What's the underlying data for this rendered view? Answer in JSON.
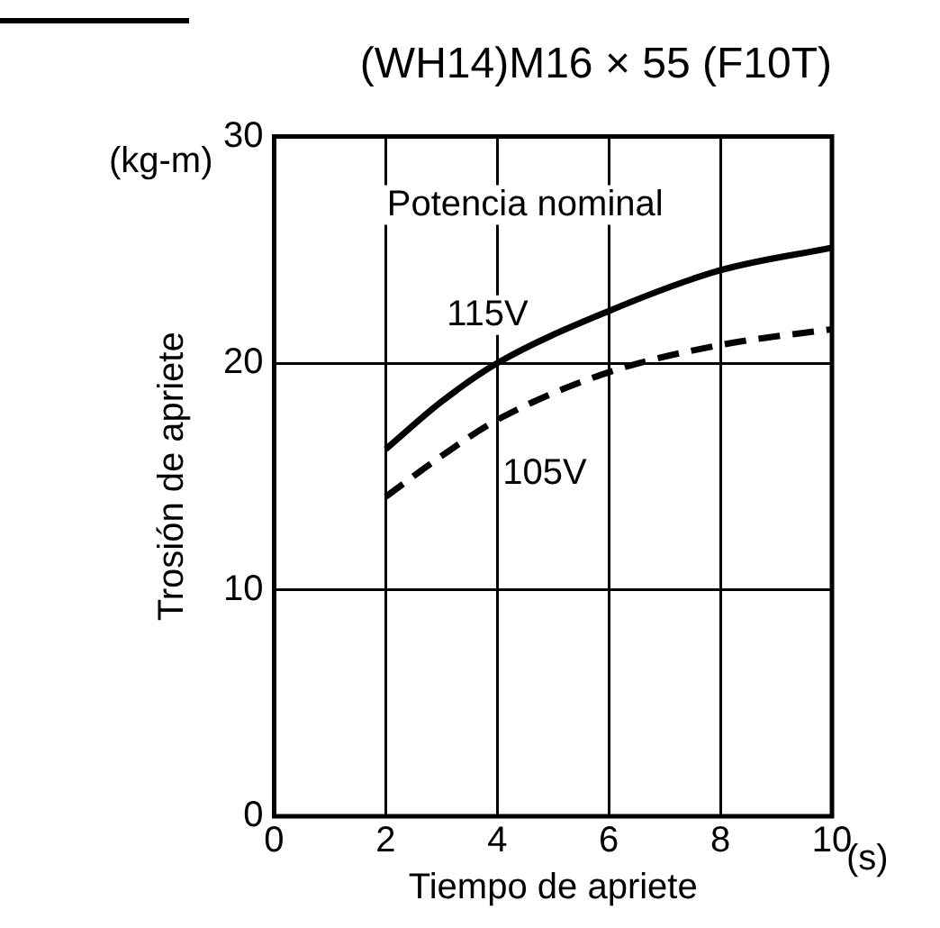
{
  "chart_data": {
    "type": "line",
    "title": "(WH14)M16 × 55 (F10T)",
    "xlabel": "Tiempo de apriete",
    "ylabel": "Trosión de apriete",
    "x": [
      2,
      3,
      4,
      6,
      8,
      10
    ],
    "series": [
      {
        "name": "115V",
        "color": "#000000",
        "line_style": "solid",
        "values": [
          16.2,
          18.3,
          20,
          22.3,
          24.1,
          25.1
        ]
      },
      {
        "name": "105V",
        "color": "#000000",
        "line_style": "dashed",
        "values": [
          14.1,
          15.9,
          17.5,
          19.6,
          20.8,
          21.5
        ]
      }
    ],
    "xlim": [
      0,
      10
    ],
    "xticks": [
      0,
      2,
      4,
      6,
      8,
      10
    ],
    "ylim": [
      0,
      30
    ],
    "yticks": [
      0,
      10,
      20,
      30
    ],
    "grid": true,
    "legend": false,
    "marker": "none",
    "annotations": [
      "Potencia nominal",
      "(kg-m)",
      "(s)"
    ]
  }
}
